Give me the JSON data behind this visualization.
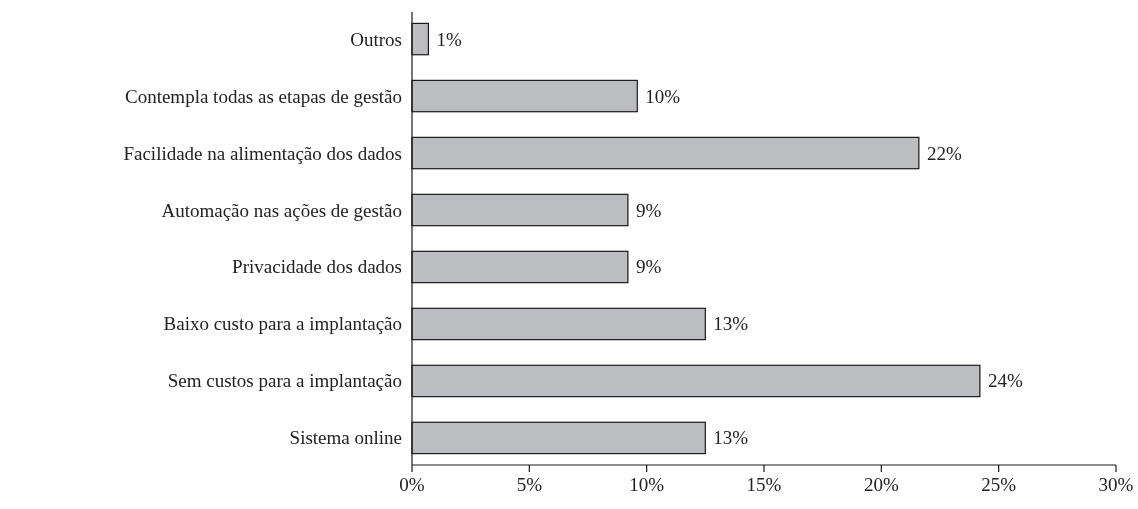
{
  "chart_data": {
    "type": "bar",
    "orientation": "horizontal",
    "categories": [
      "Outros",
      "Contempla todas as etapas de gestão",
      "Facilidade na alimentação dos dados",
      "Automação nas ações de gestão",
      "Privacidade dos dados",
      "Baixo custo para a implantação",
      "Sem custos para a implantação",
      "Sistema online"
    ],
    "values": [
      0.7,
      9.6,
      21.6,
      9.2,
      9.2,
      12.5,
      24.2,
      12.5
    ],
    "value_labels": [
      "1%",
      "10%",
      "22%",
      "9%",
      "9%",
      "13%",
      "24%",
      "13%"
    ],
    "color": "#bcbdc1",
    "xlim": [
      0,
      30
    ],
    "xticks": [
      {
        "value": 0,
        "label": "0%"
      },
      {
        "value": 5,
        "label": "5%"
      },
      {
        "value": 10,
        "label": "10%"
      },
      {
        "value": 15,
        "label": "15%"
      },
      {
        "value": 20,
        "label": "20%"
      },
      {
        "value": 25,
        "label": "25%"
      },
      {
        "value": 30,
        "label": "30%"
      }
    ],
    "grid": false
  }
}
